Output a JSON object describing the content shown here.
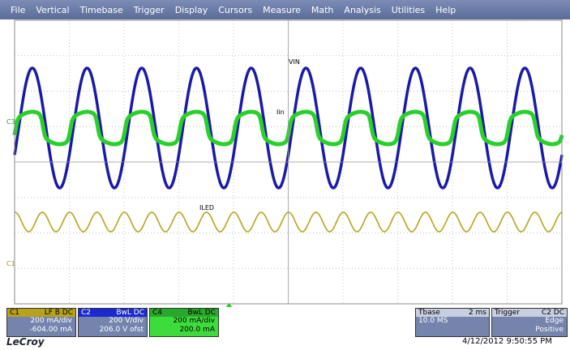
{
  "menu": [
    "File",
    "Vertical",
    "Timebase",
    "Trigger",
    "Display",
    "Cursors",
    "Measure",
    "Math",
    "Analysis",
    "Utilities",
    "Help"
  ],
  "labels": {
    "vin": "VIN",
    "iin": "Iin",
    "iled": "ILED"
  },
  "markers": {
    "c3": "C3",
    "c1": "C1"
  },
  "channels": [
    {
      "name": "C1",
      "tags": "LF B DC",
      "scale": "200 mA/div",
      "offset": "-604.00 mA"
    },
    {
      "name": "C2",
      "tags": "BwL DC",
      "scale": "200 V/div",
      "offset": "206.0 V ofst"
    },
    {
      "name": "C4",
      "tags": "BwL DC",
      "scale": "200 mA/div",
      "offset": "200.0 mA"
    }
  ],
  "timebase": {
    "title": "Tbase",
    "value": "2 ms",
    "rate": "10.0 MS"
  },
  "trigger": {
    "title": "Trigger",
    "source": "C2 DC",
    "mode": "Edge",
    "slope": "Positive"
  },
  "timestamp": "4/12/2012 9:50:55 PM",
  "brand": "LeCroy"
}
